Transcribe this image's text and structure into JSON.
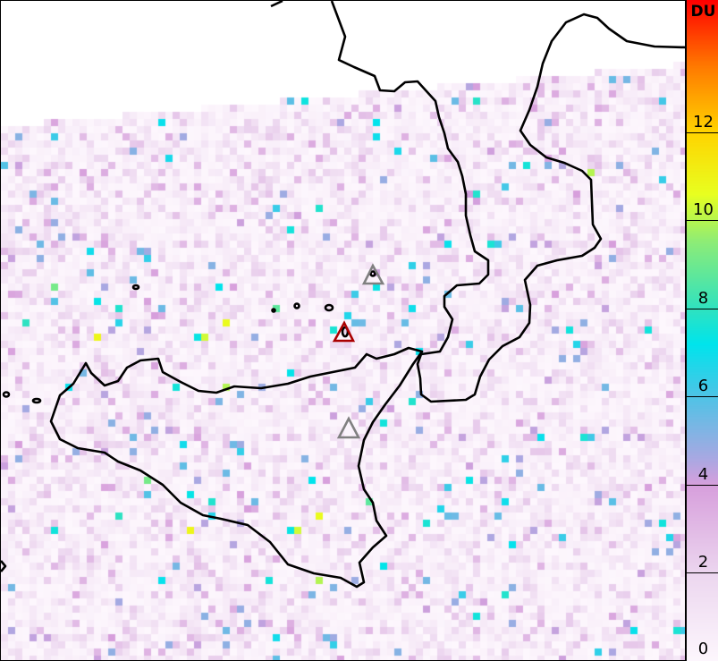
{
  "colorbar": {
    "unit": "DU",
    "min": 0,
    "max": 15,
    "ticks": [
      "0",
      "2",
      "4",
      "6",
      "8",
      "10",
      "12"
    ],
    "colors": [
      {
        "value": 0,
        "color": "#fdf7fd"
      },
      {
        "value": 2,
        "color": "#ecd6ef"
      },
      {
        "value": 4,
        "color": "#d79fdc"
      },
      {
        "value": 4.6,
        "color": "#a9a8e2"
      },
      {
        "value": 6,
        "color": "#4fc3e6"
      },
      {
        "value": 7.2,
        "color": "#00e4ec"
      },
      {
        "value": 8,
        "color": "#30e2c0"
      },
      {
        "value": 9.5,
        "color": "#8cec78"
      },
      {
        "value": 10.6,
        "color": "#e8ff20"
      },
      {
        "value": 12,
        "color": "#ffd400"
      },
      {
        "value": 13.5,
        "color": "#ff7a00"
      },
      {
        "value": 15,
        "color": "#ff0000"
      }
    ]
  },
  "markers": [
    {
      "name": "volcano-marker-active",
      "color": "#aa0000"
    },
    {
      "name": "volcano-marker",
      "color": "#808080"
    }
  ],
  "coastline_color": "#000000"
}
